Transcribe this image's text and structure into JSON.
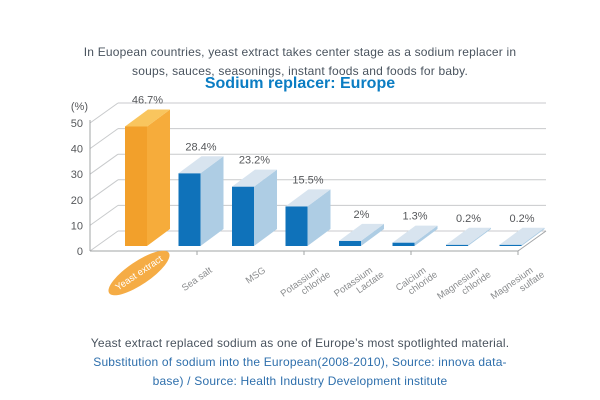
{
  "intro": {
    "line1": "In Euopean countries, yeast extract takes center stage as a sodium replacer in",
    "line2": "soups, sauces, seasonings, instant foods and foods for baby."
  },
  "chart_data": {
    "type": "bar",
    "style": "3d-column",
    "title": "Sodium replacer: Europe",
    "unit_label": "(%)",
    "categories": [
      "Yeast extract",
      "Sea salt",
      "MSG",
      "Potassium\nchloride",
      "Potassium\nLactate",
      "Calcium\nchloride",
      "Magnesium\nchloride",
      "Magnesium\nsulfate"
    ],
    "values": [
      46.7,
      28.4,
      23.2,
      15.5,
      2,
      1.3,
      0.2,
      0.2
    ],
    "value_labels": [
      "46.7%",
      "28.4%",
      "23.2%",
      "15.5%",
      "2%",
      "1.3%",
      "0.2%",
      "0.2%"
    ],
    "y_ticks": [
      0,
      10,
      20,
      30,
      40,
      50
    ],
    "ylim": [
      0,
      50
    ],
    "grid": true,
    "legend": "none",
    "highlight_index": 0,
    "colors": {
      "highlight_front": "#F2A02B",
      "highlight_side": "#F6AC3B",
      "highlight_top": "#F9C55E",
      "bar_front": "#0F72BA",
      "bar_side": "#AECDE4",
      "bar_top": "#D8E4EF",
      "grid": "#C8CACC",
      "axis": "#A2A4A6",
      "label": "#55575A",
      "tick_label": "#8A8C8E",
      "highlight_ellipse": "#F5AC45",
      "highlight_label_color": "#FFFFFF"
    }
  },
  "footer": {
    "line1": "Yeast extract replaced sodium as one of Europe’s most spotlighted material.",
    "line2": "Substitution of sodium into the European(2008-2010), Source: innova data-",
    "line3": "base) / Source: Health Industry Development institute"
  },
  "colors": {
    "title": "#0B7DC3",
    "body_text": "#49535E",
    "source_text": "#2E6FAC",
    "background": "#FFFFFF"
  }
}
